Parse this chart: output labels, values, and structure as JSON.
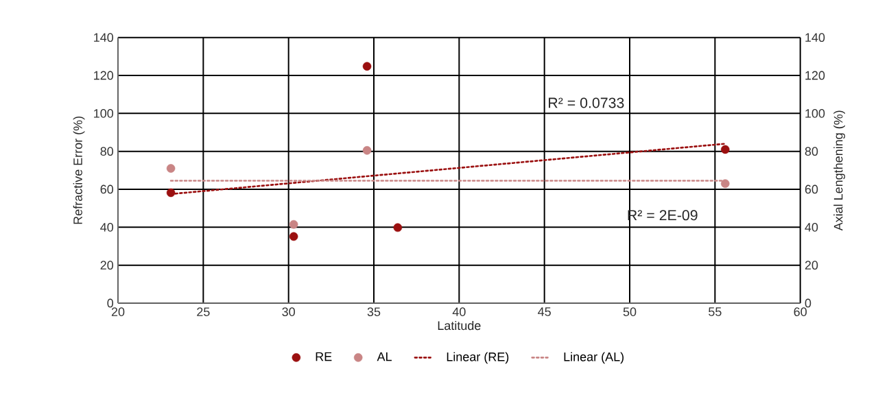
{
  "chart_data": {
    "type": "scatter",
    "xlabel": "Latitude",
    "ylabel": "Refractive Error (%)",
    "y2label": "Axial Lengthening (%)",
    "xlim": [
      20,
      60
    ],
    "xticks": [
      20,
      25,
      30,
      35,
      40,
      45,
      50,
      55,
      60
    ],
    "ylim": [
      0,
      140
    ],
    "yticks": [
      0,
      20,
      40,
      60,
      80,
      100,
      120,
      140
    ],
    "y2lim": [
      0,
      140
    ],
    "y2ticks": [
      0,
      20,
      40,
      60,
      80,
      100,
      120,
      140
    ],
    "grid": true,
    "legend": "bottom",
    "marker": "circle",
    "annotations": [
      "R² = 0.0733",
      "R² = 2E-09"
    ],
    "series": [
      {
        "name": "RE",
        "color": "#9b1010",
        "x": [
          23.1,
          30.3,
          34.6,
          36.4,
          55.6
        ],
        "values": [
          58.2,
          35.1,
          124.8,
          39.8,
          81
        ]
      },
      {
        "name": "AL",
        "color": "#c98585",
        "axis": "y2",
        "x": [
          23.1,
          30.3,
          34.6,
          55.6
        ],
        "values": [
          71,
          41.5,
          80.5,
          63
        ]
      },
      {
        "name": "Linear (RE)",
        "type": "line",
        "marker": "none",
        "line_style": "dotted",
        "color": "#9b1010",
        "x": [
          23.1,
          55.6
        ],
        "values": [
          57.5,
          84
        ]
      },
      {
        "name": "Linear (AL)",
        "type": "line",
        "marker": "none",
        "line_style": "dotted",
        "color": "#c98585",
        "axis": "y2",
        "x": [
          23.1,
          55.6
        ],
        "values": [
          64.5,
          64.5
        ]
      }
    ]
  }
}
